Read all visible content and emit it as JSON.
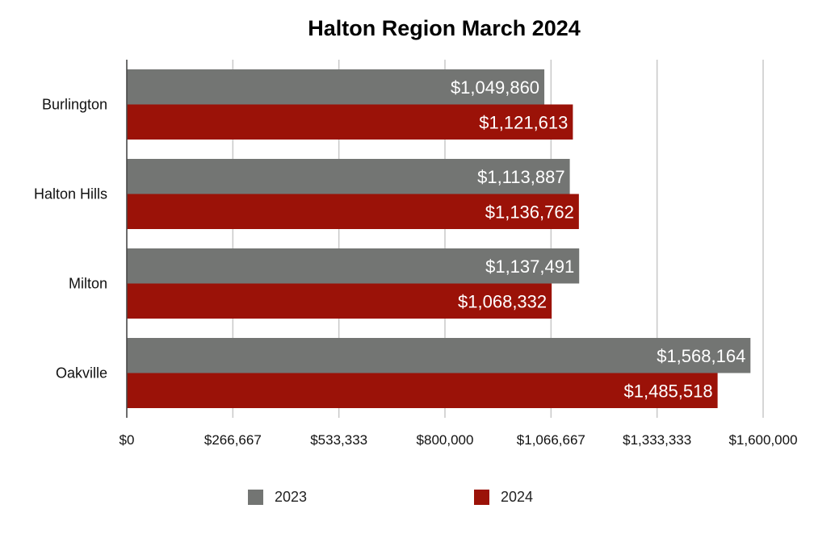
{
  "chart_data": {
    "type": "bar",
    "orientation": "horizontal",
    "title": "Halton Region March 2024",
    "categories": [
      "Burlington",
      "Halton Hills",
      "Milton",
      "Oakville"
    ],
    "series": [
      {
        "name": "2023",
        "color": "#737573",
        "values": [
          1049860,
          1113887,
          1137491,
          1568164
        ],
        "labels": [
          "$1,049,860",
          "$1,113,887",
          "$1,137,491",
          "$1,568,164"
        ]
      },
      {
        "name": "2024",
        "color": "#9b1208",
        "values": [
          1121613,
          1136762,
          1068332,
          1485518
        ],
        "labels": [
          "$1,121,613",
          "$1,136,762",
          "$1,068,332",
          "$1,485,518"
        ]
      }
    ],
    "xlim": [
      0,
      1600000
    ],
    "xticks": [
      0,
      266667,
      533333,
      800000,
      1066667,
      1333333,
      1600000
    ],
    "xtick_labels": [
      "$0",
      "$266,667",
      "$533,333",
      "$800,000",
      "$1,066,667",
      "$1,333,333",
      "$1,600,000"
    ],
    "grid": true,
    "legend_position": "bottom"
  },
  "legend": {
    "items": [
      {
        "label": "2023",
        "color": "#737573"
      },
      {
        "label": "2024",
        "color": "#9b1208"
      }
    ]
  }
}
